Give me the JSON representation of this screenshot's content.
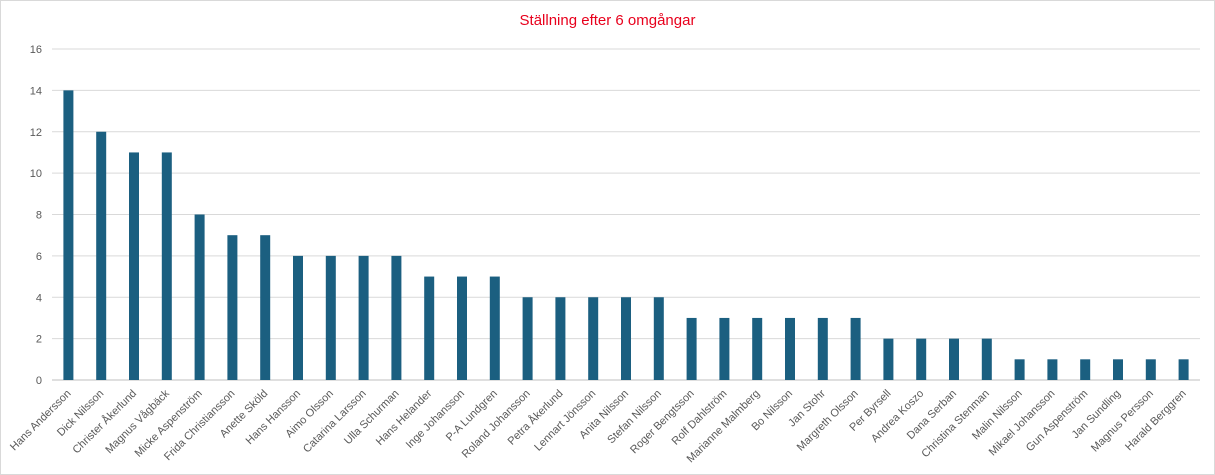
{
  "chart_data": {
    "type": "bar",
    "title": "Ställning efter 6 omgångar",
    "xlabel": "",
    "ylabel": "",
    "ylim": [
      0,
      16
    ],
    "yticks": [
      0,
      2,
      4,
      6,
      8,
      10,
      12,
      14,
      16
    ],
    "grid": true,
    "legend": "none",
    "colors": {
      "bar": "#1b5f80",
      "title": "#e8001c",
      "grid": "#d9d9d9",
      "axis": "#bfbfbf",
      "text": "#595959"
    },
    "categories": [
      "Hans Andersson",
      "Dick Nilsson",
      "Christer Åkerlund",
      "Magnus Vågbäck",
      "Micke Aspenström",
      "Frida Christiansson",
      "Anette Sköld",
      "Hans Hansson",
      "Aimo Olsson",
      "Catarina Larsson",
      "Ulla Schurman",
      "Hans Helander",
      "Inge Johansson",
      "P-A Lundgren",
      "Roland Johansson",
      "Petra Åkerlund",
      "Lennart Jönsson",
      "Anita Nilsson",
      "Stefan Nilsson",
      "Roger Bengtsson",
      "Rolf Dahlström",
      "Marianne Malmberg",
      "Bo Nilsson",
      "Jan Stohr",
      "Margreth Olsson",
      "Per Byrsell",
      "Andrea Koszo",
      "Dana Serban",
      "Christina Stenman",
      "Malin Nilsson",
      "Mikael Johansson",
      "Gun Aspenström",
      "Jan Sundling",
      "Magnus Persson",
      "Harald Berggren"
    ],
    "values": [
      14,
      12,
      11,
      11,
      8,
      7,
      7,
      6,
      6,
      6,
      6,
      5,
      5,
      5,
      4,
      4,
      4,
      4,
      4,
      3,
      3,
      3,
      3,
      3,
      3,
      2,
      2,
      2,
      2,
      1,
      1,
      1,
      1,
      1,
      1
    ]
  }
}
